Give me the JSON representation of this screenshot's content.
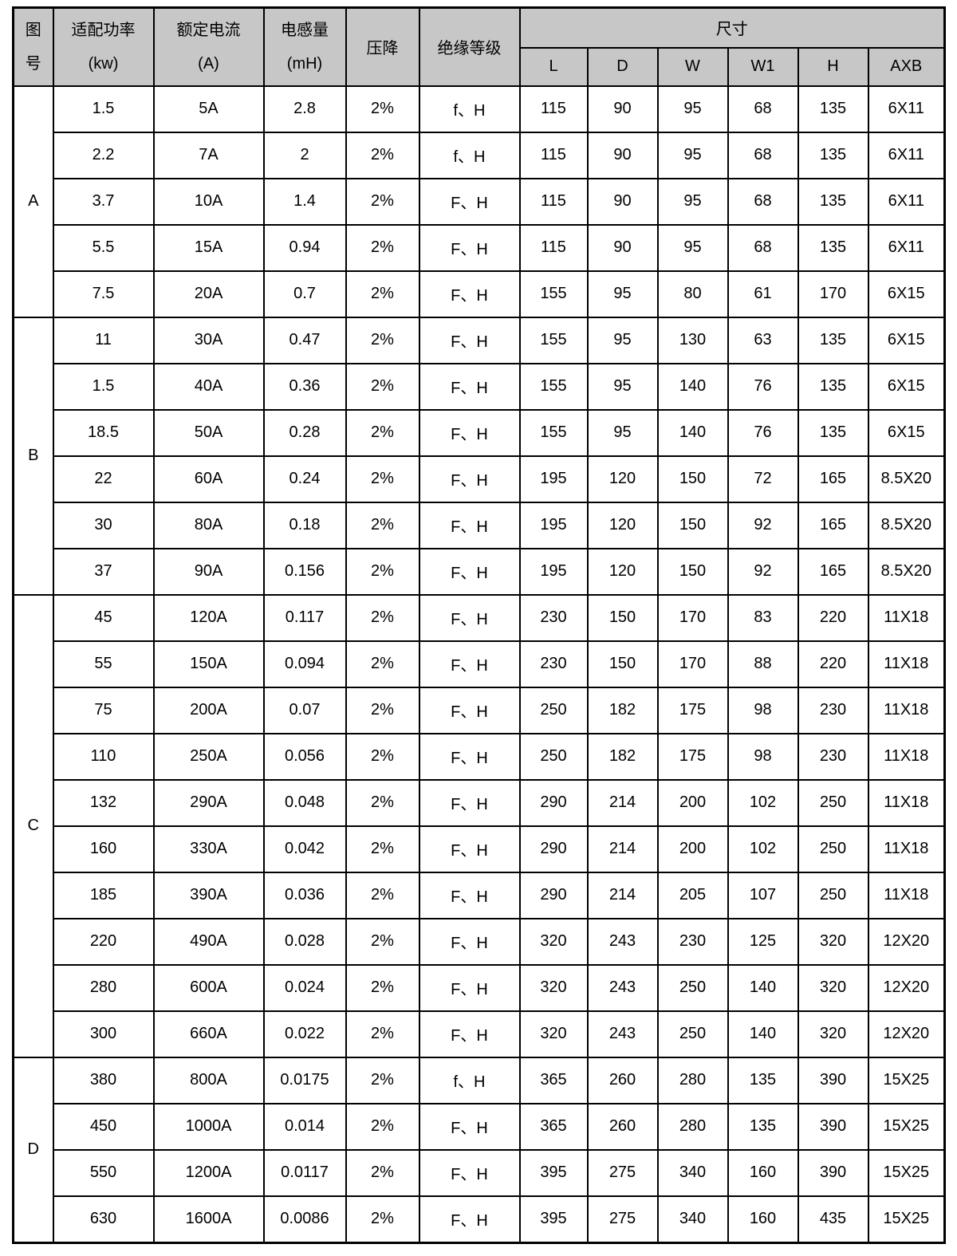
{
  "table": {
    "header": {
      "figure": {
        "line1": "图",
        "line2": "号"
      },
      "power": {
        "line1": "适配功率",
        "line2": "(kw)"
      },
      "current": {
        "line1": "额定电流",
        "line2": "(A)"
      },
      "inductance": {
        "line1": "电感量",
        "line2": "(mH)"
      },
      "voltage_drop": "压降",
      "insulation_class": "绝缘等级",
      "dimensions": "尺寸",
      "dimension_subcolumns": [
        "L",
        "D",
        "W",
        "W1",
        "H",
        "AXB"
      ]
    },
    "groups": [
      {
        "figure": "A",
        "rows": [
          [
            "1.5",
            "5A",
            "2.8",
            "2%",
            "f、H",
            "115",
            "90",
            "95",
            "68",
            "135",
            "6X11"
          ],
          [
            "2.2",
            "7A",
            "2",
            "2%",
            "f、H",
            "115",
            "90",
            "95",
            "68",
            "135",
            "6X11"
          ],
          [
            "3.7",
            "10A",
            "1.4",
            "2%",
            "F、H",
            "115",
            "90",
            "95",
            "68",
            "135",
            "6X11"
          ],
          [
            "5.5",
            "15A",
            "0.94",
            "2%",
            "F、H",
            "115",
            "90",
            "95",
            "68",
            "135",
            "6X11"
          ],
          [
            "7.5",
            "20A",
            "0.7",
            "2%",
            "F、H",
            "155",
            "95",
            "80",
            "61",
            "170",
            "6X15"
          ]
        ]
      },
      {
        "figure": "B",
        "rows": [
          [
            "11",
            "30A",
            "0.47",
            "2%",
            "F、H",
            "155",
            "95",
            "130",
            "63",
            "135",
            "6X15"
          ],
          [
            "1.5",
            "40A",
            "0.36",
            "2%",
            "F、H",
            "155",
            "95",
            "140",
            "76",
            "135",
            "6X15"
          ],
          [
            "18.5",
            "50A",
            "0.28",
            "2%",
            "F、H",
            "155",
            "95",
            "140",
            "76",
            "135",
            "6X15"
          ],
          [
            "22",
            "60A",
            "0.24",
            "2%",
            "F、H",
            "195",
            "120",
            "150",
            "72",
            "165",
            "8.5X20"
          ],
          [
            "30",
            "80A",
            "0.18",
            "2%",
            "F、H",
            "195",
            "120",
            "150",
            "92",
            "165",
            "8.5X20"
          ],
          [
            "37",
            "90A",
            "0.156",
            "2%",
            "F、H",
            "195",
            "120",
            "150",
            "92",
            "165",
            "8.5X20"
          ]
        ]
      },
      {
        "figure": "C",
        "rows": [
          [
            "45",
            "120A",
            "0.117",
            "2%",
            "F、H",
            "230",
            "150",
            "170",
            "83",
            "220",
            "11X18"
          ],
          [
            "55",
            "150A",
            "0.094",
            "2%",
            "F、H",
            "230",
            "150",
            "170",
            "88",
            "220",
            "11X18"
          ],
          [
            "75",
            "200A",
            "0.07",
            "2%",
            "F、H",
            "250",
            "182",
            "175",
            "98",
            "230",
            "11X18"
          ],
          [
            "110",
            "250A",
            "0.056",
            "2%",
            "F、H",
            "250",
            "182",
            "175",
            "98",
            "230",
            "11X18"
          ],
          [
            "132",
            "290A",
            "0.048",
            "2%",
            "F、H",
            "290",
            "214",
            "200",
            "102",
            "250",
            "11X18"
          ],
          [
            "160",
            "330A",
            "0.042",
            "2%",
            "F、H",
            "290",
            "214",
            "200",
            "102",
            "250",
            "11X18"
          ],
          [
            "185",
            "390A",
            "0.036",
            "2%",
            "F、H",
            "290",
            "214",
            "205",
            "107",
            "250",
            "11X18"
          ],
          [
            "220",
            "490A",
            "0.028",
            "2%",
            "F、H",
            "320",
            "243",
            "230",
            "125",
            "320",
            "12X20"
          ],
          [
            "280",
            "600A",
            "0.024",
            "2%",
            "F、H",
            "320",
            "243",
            "250",
            "140",
            "320",
            "12X20"
          ],
          [
            "300",
            "660A",
            "0.022",
            "2%",
            "F、H",
            "320",
            "243",
            "250",
            "140",
            "320",
            "12X20"
          ]
        ]
      },
      {
        "figure": "D",
        "rows": [
          [
            "380",
            "800A",
            "0.0175",
            "2%",
            "f、H",
            "365",
            "260",
            "280",
            "135",
            "390",
            "15X25"
          ],
          [
            "450",
            "1000A",
            "0.014",
            "2%",
            "F、H",
            "365",
            "260",
            "280",
            "135",
            "390",
            "15X25"
          ],
          [
            "550",
            "1200A",
            "0.0117",
            "2%",
            "F、H",
            "395",
            "275",
            "340",
            "160",
            "390",
            "15X25"
          ],
          [
            "630",
            "1600A",
            "0.0086",
            "2%",
            "F、H",
            "395",
            "275",
            "340",
            "160",
            "435",
            "15X25"
          ]
        ]
      }
    ]
  },
  "colors": {
    "header_bg": "#c7c7c7",
    "border": "#000000",
    "page_bg": "#ffffff"
  }
}
